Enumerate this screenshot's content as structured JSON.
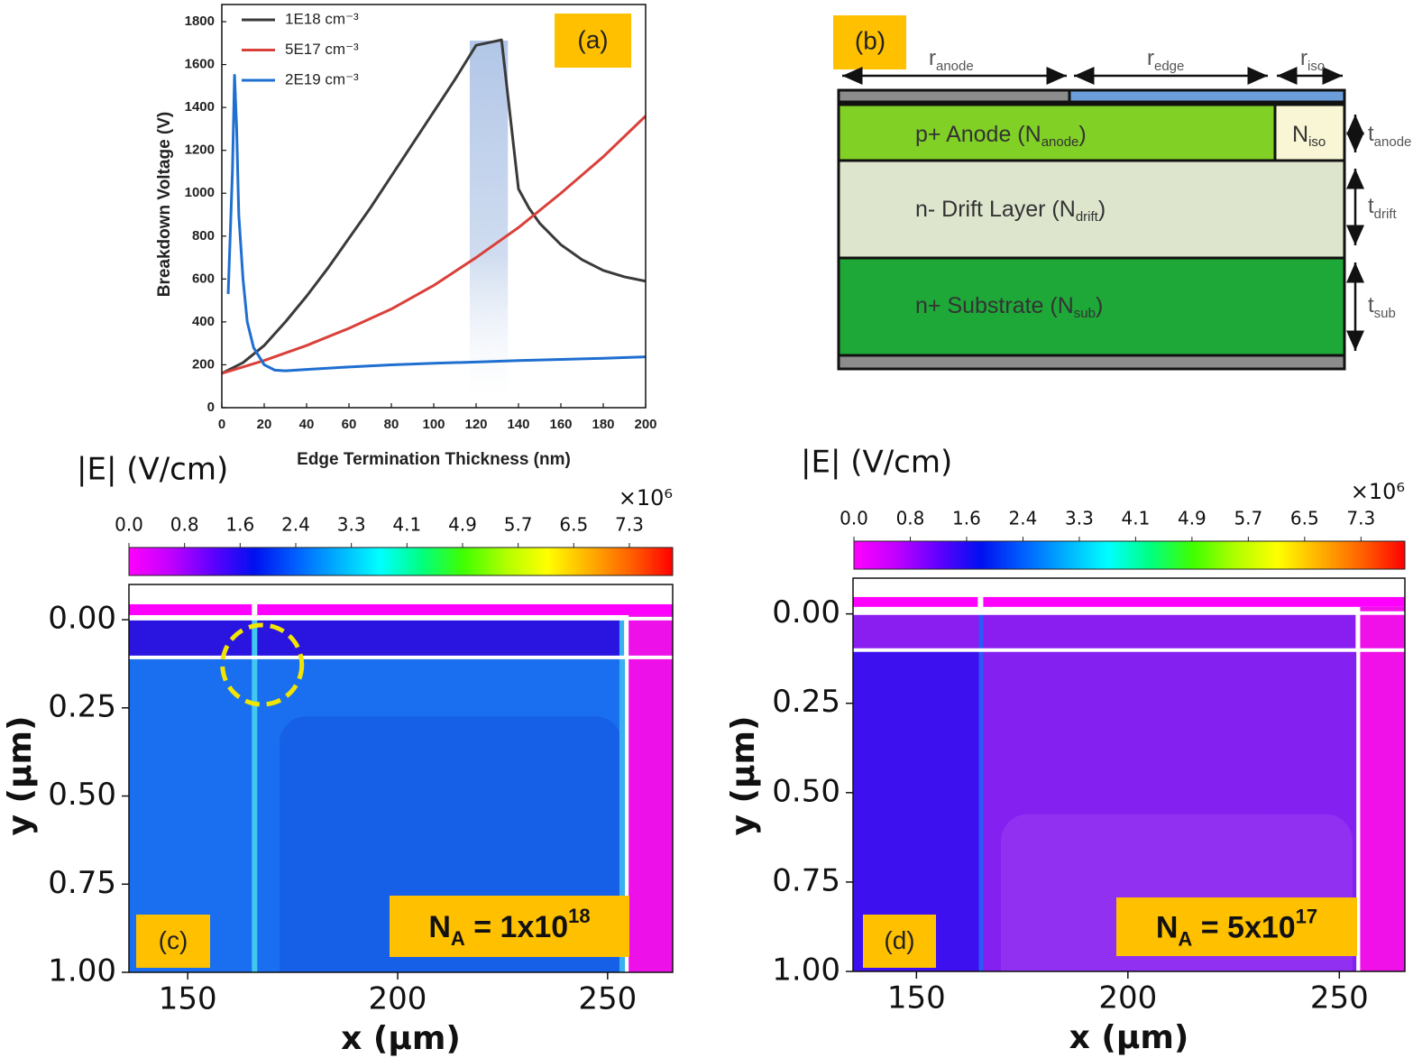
{
  "chart_data": [
    {
      "type": "line",
      "panel_label": "(a)",
      "x_label": "Edge Termination Thickness (nm)",
      "y_label": "Breakdown Voltage (V)",
      "xlim": [
        0,
        200
      ],
      "ylim": [
        0,
        1880
      ],
      "xticks": [
        0,
        20,
        40,
        60,
        80,
        100,
        120,
        140,
        160,
        180,
        200
      ],
      "yticks": [
        0,
        200,
        400,
        600,
        800,
        1000,
        1200,
        1400,
        1600,
        1800
      ],
      "legend": "upper left",
      "highlight": [
        117,
        135
      ],
      "series": [
        {
          "name": "1E18 cm⁻³",
          "color": "#3a3a3a",
          "x": [
            0,
            10,
            20,
            30,
            40,
            50,
            60,
            70,
            80,
            90,
            100,
            110,
            120,
            132,
            140,
            145,
            150,
            160,
            170,
            180,
            190,
            200
          ],
          "values": [
            160,
            210,
            290,
            400,
            520,
            650,
            790,
            930,
            1080,
            1230,
            1380,
            1530,
            1690,
            1715,
            1020,
            930,
            860,
            760,
            690,
            640,
            610,
            590
          ]
        },
        {
          "name": "5E17 cm⁻³",
          "color": "#d9403a",
          "x": [
            0,
            20,
            40,
            60,
            80,
            100,
            120,
            140,
            160,
            180,
            200
          ],
          "values": [
            160,
            220,
            290,
            370,
            460,
            570,
            700,
            840,
            1000,
            1170,
            1360
          ]
        },
        {
          "name": "2E19 cm⁻³",
          "color": "#1f6fd0",
          "x": [
            3,
            5,
            6,
            7,
            8,
            10,
            12,
            15,
            20,
            25,
            30,
            40,
            60,
            80,
            100,
            120,
            140,
            160,
            180,
            200
          ],
          "values": [
            530,
            1100,
            1550,
            1300,
            900,
            600,
            400,
            280,
            200,
            175,
            172,
            178,
            190,
            200,
            207,
            213,
            220,
            225,
            230,
            237
          ]
        }
      ]
    },
    {
      "type": "heatmap",
      "panel_label": "(c)",
      "colorbar_label": "|E| (V/cm)",
      "colorbar_multiplier": "×10⁶",
      "clim": [
        0,
        7.97
      ],
      "cticks": [
        {
          "value": 0,
          "label": "0.0"
        },
        {
          "value": 0.815,
          "label": "0.8"
        },
        {
          "value": 1.63,
          "label": "1.6"
        },
        {
          "value": 2.445,
          "label": "2.4"
        },
        {
          "value": 3.26,
          "label": "3.3"
        },
        {
          "value": 4.075,
          "label": "4.1"
        },
        {
          "value": 4.89,
          "label": "4.9"
        },
        {
          "value": 5.705,
          "label": "5.7"
        },
        {
          "value": 6.52,
          "label": "6.5"
        },
        {
          "value": 7.335,
          "label": "7.3"
        }
      ],
      "colormap": [
        "#ff00ff",
        "#c000ff",
        "#6000ff",
        "#0010f0",
        "#0060ff",
        "#00b0ff",
        "#00ffff",
        "#00ff80",
        "#40ff00",
        "#b0ff00",
        "#ffff00",
        "#ffb000",
        "#ff6000",
        "#ff0000"
      ],
      "x_label": "x (μm)",
      "y_label": "y (μm)",
      "xlim": [
        136,
        265.5
      ],
      "ylim": [
        1.0,
        -0.1
      ],
      "xticks": [
        150,
        200,
        250
      ],
      "yticks": [
        {
          "value": 0,
          "label": "0.00"
        },
        0.25,
        {
          "value": 0.5,
          "label": "0.50"
        },
        0.75,
        {
          "value": 1,
          "label": "1.00"
        }
      ],
      "annotation": {
        "symbol": "N",
        "subscript": "A",
        "text": " = 1x10",
        "superscript": "18"
      }
    },
    {
      "type": "heatmap",
      "panel_label": "(d)",
      "colorbar_label": "|E| (V/cm)",
      "colorbar_multiplier": "×10⁶",
      "clim": [
        0,
        7.97
      ],
      "cticks": [
        {
          "value": 0,
          "label": "0.0"
        },
        {
          "value": 0.815,
          "label": "0.8"
        },
        {
          "value": 1.63,
          "label": "1.6"
        },
        {
          "value": 2.445,
          "label": "2.4"
        },
        {
          "value": 3.26,
          "label": "3.3"
        },
        {
          "value": 4.075,
          "label": "4.1"
        },
        {
          "value": 4.89,
          "label": "4.9"
        },
        {
          "value": 5.705,
          "label": "5.7"
        },
        {
          "value": 6.52,
          "label": "6.5"
        },
        {
          "value": 7.335,
          "label": "7.3"
        }
      ],
      "colormap": [
        "#ff00ff",
        "#c000ff",
        "#6000ff",
        "#0010f0",
        "#0060ff",
        "#00b0ff",
        "#00ffff",
        "#00ff80",
        "#40ff00",
        "#b0ff00",
        "#ffff00",
        "#ffb000",
        "#ff6000",
        "#ff0000"
      ],
      "x_label": "x (μm)",
      "y_label": "y (μm)",
      "xlim": [
        135,
        265.5
      ],
      "ylim": [
        1.0,
        -0.1
      ],
      "xticks": [
        150,
        200,
        250
      ],
      "yticks": [
        {
          "value": 0,
          "label": "0.00"
        },
        0.25,
        {
          "value": 0.5,
          "label": "0.50"
        },
        0.75,
        {
          "value": 1,
          "label": "1.00"
        }
      ],
      "annotation": {
        "symbol": "N",
        "subscript": "A",
        "text": " = 5x10",
        "superscript": "17"
      }
    }
  ],
  "diagram": {
    "panel_label": "(b)",
    "dimensions": [
      {
        "symbol": "r",
        "subscript": "anode"
      },
      {
        "symbol": "r",
        "subscript": "edge"
      },
      {
        "symbol": "r",
        "subscript": "iso"
      }
    ],
    "layers": [
      {
        "text": "p+ Anode (N",
        "subscript": "anode",
        "suffix": ")"
      },
      {
        "text": "n- Drift Layer (N",
        "subscript": "drift",
        "suffix": ")"
      },
      {
        "text": "n+ Substrate (N",
        "subscript": "sub",
        "suffix": ")"
      }
    ],
    "iso": {
      "symbol": "N",
      "subscript": "iso"
    },
    "thicknesses": [
      {
        "symbol": "t",
        "subscript": "anode"
      },
      {
        "symbol": "t",
        "subscript": "drift"
      },
      {
        "symbol": "t",
        "subscript": "sub"
      }
    ]
  }
}
